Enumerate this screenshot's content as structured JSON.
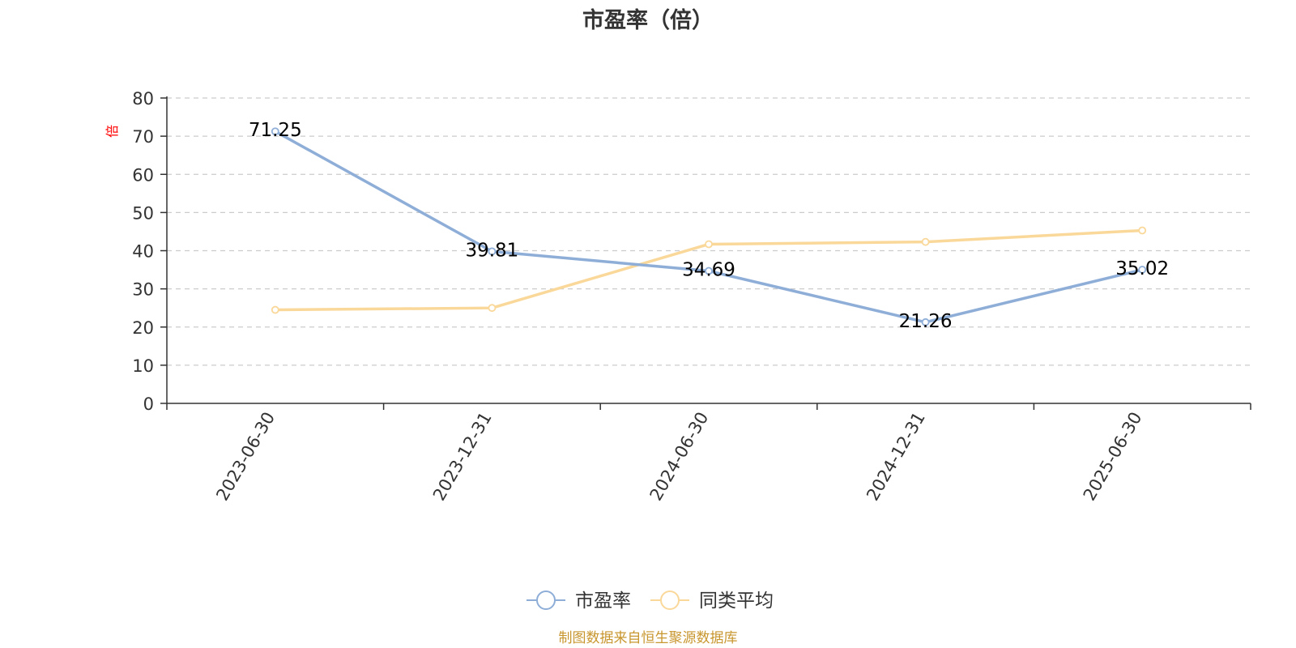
{
  "chart_data": {
    "type": "line",
    "title": "市盈率（倍）",
    "ylabel": "倍",
    "ylim": [
      0,
      80
    ],
    "yticks": [
      0,
      10,
      20,
      30,
      40,
      50,
      60,
      70,
      80
    ],
    "categories": [
      "2023-06-30",
      "2023-12-31",
      "2024-06-30",
      "2024-12-31",
      "2025-06-30"
    ],
    "grid": true,
    "legend_position": "bottom",
    "series": [
      {
        "name": "市盈率",
        "color": "#8eaed8",
        "values": [
          71.25,
          39.81,
          34.69,
          21.26,
          35.02
        ],
        "labels": [
          "71.25",
          "39.81",
          "34.69",
          "21.26",
          "35.02"
        ]
      },
      {
        "name": "同类平均",
        "color": "#fad89a",
        "values": [
          24.5,
          25.0,
          41.7,
          42.3,
          45.3
        ],
        "labels": null
      }
    ]
  },
  "footer": {
    "source": "制图数据来自恒生聚源数据库"
  }
}
